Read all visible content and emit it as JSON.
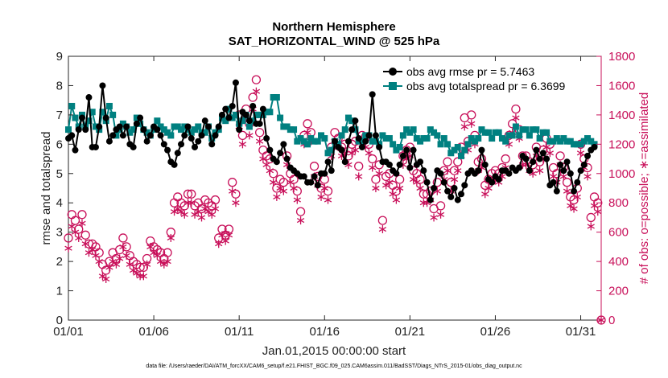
{
  "chart_data": {
    "type": "line",
    "title": [
      "Northern Hemisphere",
      "SAT_HORIZONTAL_WIND @ 525 hPa"
    ],
    "xlabel": "Jan.01,2015 00:00:00 start",
    "ylabel_left": "rmse and totalspread",
    "ylabel_right": "# of obs: o=possible; ∗=assimilated",
    "footnote": "data file: /Users/raeder/DAI/ATM_forcXX/CAM6_setup/f.e21.FHIST_BGC.f09_025.CAM6assim.011/BadSST/Diags_NTrS_2015-01/obs_diag_output.nc",
    "xlim": [
      0,
      31.2
    ],
    "ylim_left": [
      0,
      9
    ],
    "ylim_right": [
      0,
      1800
    ],
    "x_ticks": [
      0,
      5,
      10,
      15,
      20,
      25,
      30
    ],
    "x_tick_labels": [
      "01/01",
      "01/06",
      "01/11",
      "01/16",
      "01/21",
      "01/26",
      "01/31"
    ],
    "y_ticks_left": [
      "0",
      "1",
      "2",
      "3",
      "4",
      "5",
      "6",
      "7",
      "8",
      "9"
    ],
    "y_ticks_right": [
      "0",
      "200",
      "400",
      "600",
      "800",
      "1000",
      "1200",
      "1400",
      "1600",
      "1800"
    ],
    "legend_position": "top-right",
    "colors": {
      "rmse": "#000000",
      "spread": "#008080",
      "obs": "#c8105a"
    },
    "series": [
      {
        "name": "obs avg rmse pr = 5.7463",
        "axis": "left",
        "values": [
          6.2,
          6.3,
          5.8,
          6.5,
          6.9,
          6.5,
          7.6,
          5.9,
          5.9,
          6.6,
          8.0,
          6.9,
          6.1,
          6.3,
          6.5,
          6.6,
          6.3,
          6.6,
          6.0,
          5.9,
          6.7,
          6.9,
          6.5,
          6.1,
          6.3,
          6.6,
          6.5,
          6.3,
          6.0,
          5.8,
          5.4,
          5.3,
          5.7,
          6.0,
          6.3,
          6.6,
          6.2,
          5.9,
          6.1,
          6.3,
          6.8,
          6.6,
          6.0,
          6.3,
          6.6,
          7.0,
          7.2,
          6.9,
          7.3,
          8.1,
          6.5,
          7.1,
          7.0,
          6.8,
          7.3,
          6.7,
          6.7,
          7.2,
          6.2,
          5.8,
          5.5,
          5.4,
          5.7,
          6.0,
          5.5,
          5.2,
          5.1,
          5.0,
          4.9,
          4.9,
          4.7,
          4.7,
          4.9,
          4.6,
          5.0,
          5.0,
          5.4,
          5.1,
          6.1,
          5.9,
          5.8,
          5.4,
          6.1,
          6.5,
          6.8,
          6.2,
          5.9,
          6.1,
          6.3,
          7.7,
          6.3,
          5.9,
          5.4,
          5.4,
          5.3,
          5.1,
          5.0,
          5.3,
          5.6,
          5.8,
          5.2,
          5.8,
          5.3,
          5.4,
          5.1,
          4.7,
          4.1,
          4.5,
          5.1,
          5.0,
          4.7,
          4.4,
          4.2,
          4.5,
          4.1,
          4.3,
          4.6,
          5.0,
          5.1,
          5.0,
          5.1,
          5.8,
          5.3,
          4.8,
          4.7,
          4.9,
          4.8,
          5.1,
          5.1,
          5.0,
          5.2,
          5.1,
          5.2,
          5.6,
          5.5,
          5.1,
          5.4,
          5.8,
          5.5,
          5.7,
          5.5,
          4.6,
          4.7,
          4.4,
          5.3,
          5.1,
          5.4,
          5.0,
          4.4,
          4.7,
          5.1,
          5.3,
          5.6,
          5.8,
          5.9
        ],
        "x_start": 0,
        "x_step": 0.2
      },
      {
        "name": "obs avg totalspread pr = 6.3699",
        "axis": "left",
        "values": [
          6.5,
          7.3,
          6.9,
          6.6,
          7.0,
          6.6,
          6.8,
          7.1,
          6.6,
          6.5,
          7.1,
          6.8,
          7.3,
          7.0,
          6.3,
          6.5,
          6.7,
          6.6,
          6.4,
          6.5,
          6.9,
          6.7,
          6.5,
          6.4,
          6.3,
          6.5,
          6.8,
          6.6,
          6.5,
          6.4,
          6.3,
          6.6,
          6.6,
          6.5,
          6.6,
          6.5,
          6.4,
          6.5,
          6.6,
          6.4,
          6.4,
          6.6,
          6.2,
          6.4,
          6.5,
          6.9,
          6.8,
          7.2,
          6.9,
          7.0,
          6.7,
          6.8,
          7.0,
          6.6,
          6.8,
          7.0,
          7.0,
          7.0,
          7.1,
          7.1,
          7.6,
          7.6,
          6.9,
          6.6,
          6.6,
          6.5,
          6.5,
          6.1,
          6.2,
          6.1,
          6.0,
          6.2,
          6.1,
          6.1,
          6.3,
          6.2,
          5.7,
          5.8,
          6.1,
          6.0,
          6.3,
          6.5,
          6.9,
          6.8,
          6.5,
          6.1,
          6.1,
          6.3,
          6.3,
          6.1,
          6.1,
          6.0,
          6.3,
          6.2,
          6.2,
          6.0,
          5.8,
          5.9,
          6.3,
          6.5,
          6.4,
          6.5,
          6.2,
          6.1,
          6.2,
          6.2,
          6.5,
          6.4,
          6.3,
          6.0,
          6.2,
          6.0,
          5.7,
          5.8,
          5.9,
          5.6,
          5.8,
          6.0,
          6.2,
          6.1,
          6.2,
          6.5,
          6.4,
          6.4,
          6.2,
          6.4,
          6.4,
          6.2,
          6.1,
          6.3,
          6.3,
          6.6,
          6.3,
          6.5,
          6.5,
          6.3,
          6.5,
          6.5,
          6.2,
          6.4,
          6.4,
          6.1,
          6.1,
          6.2,
          6.1,
          6.2,
          6.1,
          6.1,
          6.0,
          6.0,
          6.0,
          6.1,
          6.2,
          6.1,
          6.0
        ],
        "x_start": 0,
        "x_step": 0.2
      },
      {
        "name": "possible",
        "axis": "right",
        "values": [
          560,
          720,
          680,
          620,
          720,
          580,
          520,
          520,
          500,
          460,
          380,
          340,
          400,
          460,
          420,
          480,
          560,
          500,
          440,
          400,
          380,
          360,
          360,
          420,
          540,
          500,
          480,
          460,
          420,
          460,
          600,
          800,
          840,
          800,
          780,
          860,
          860,
          780,
          800,
          760,
          820,
          800,
          780,
          820,
          560,
          620,
          580,
          620,
          940,
          860,
          1400,
          1260,
          1440,
          1340,
          1520,
          1640,
          1280,
          1160,
          1120,
          1100,
          1000,
          900,
          960,
          940,
          1120,
          1000,
          960,
          880,
          740,
          1260,
          1340,
          1280,
          1050,
          980,
          900,
          960,
          880,
          1180,
          1280,
          1240,
          1180,
          1200,
          1120,
          1200,
          1220,
          1050,
          1260,
          1250,
          1200,
          1100,
          960,
          1060,
          680,
          980,
          1000,
          920,
          880,
          960,
          1120,
          1160,
          1180,
          1020,
          1000,
          960,
          860,
          860,
          880,
          760,
          940,
          780,
          1020,
          1080,
          940,
          1020,
          1080,
          1180,
          1380,
          1220,
          1400,
          1260,
          1080,
          1100,
          920,
          960,
          1000,
          1020,
          1000,
          1040,
          1100,
          1260,
          1340,
          1440,
          1300,
          1120,
          1120,
          1080,
          1060,
          1180,
          1080,
          1160,
          1240,
          1200,
          1040,
          1000,
          1120,
          1040,
          940,
          840,
          820,
          900,
          1200,
          1100,
          1040,
          700,
          840,
          800,
          0
        ],
        "x_start": 0,
        "x_step": 0.2
      },
      {
        "name": "assimilated",
        "axis": "right",
        "values": [
          490,
          640,
          600,
          560,
          660,
          520,
          460,
          480,
          440,
          400,
          300,
          280,
          360,
          400,
          380,
          420,
          500,
          440,
          380,
          340,
          320,
          300,
          300,
          380,
          500,
          460,
          440,
          400,
          380,
          400,
          560,
          740,
          760,
          740,
          720,
          800,
          800,
          720,
          740,
          700,
          760,
          740,
          720,
          760,
          520,
          580,
          540,
          580,
          880,
          800,
          1320,
          1200,
          1380,
          1260,
          1440,
          1560,
          1220,
          1100,
          1060,
          1020,
          940,
          840,
          900,
          880,
          1060,
          940,
          900,
          820,
          680,
          1200,
          1280,
          1220,
          980,
          920,
          840,
          900,
          820,
          1120,
          1220,
          1180,
          1120,
          1140,
          1060,
          1140,
          1160,
          980,
          1200,
          1180,
          1140,
          1040,
          900,
          1000,
          620,
          920,
          940,
          860,
          820,
          900,
          1060,
          1100,
          1120,
          960,
          940,
          900,
          800,
          800,
          820,
          700,
          880,
          720,
          960,
          1020,
          880,
          960,
          1020,
          1120,
          1320,
          1160,
          1340,
          1200,
          1020,
          1040,
          860,
          900,
          940,
          960,
          940,
          980,
          1040,
          1200,
          1280,
          1380,
          1240,
          1060,
          1060,
          1020,
          1000,
          1120,
          1020,
          1100,
          1180,
          1140,
          980,
          940,
          1060,
          980,
          880,
          780,
          760,
          840,
          1140,
          1040,
          980,
          640,
          780,
          740,
          0
        ],
        "x_start": 0,
        "x_step": 0.2
      }
    ]
  }
}
